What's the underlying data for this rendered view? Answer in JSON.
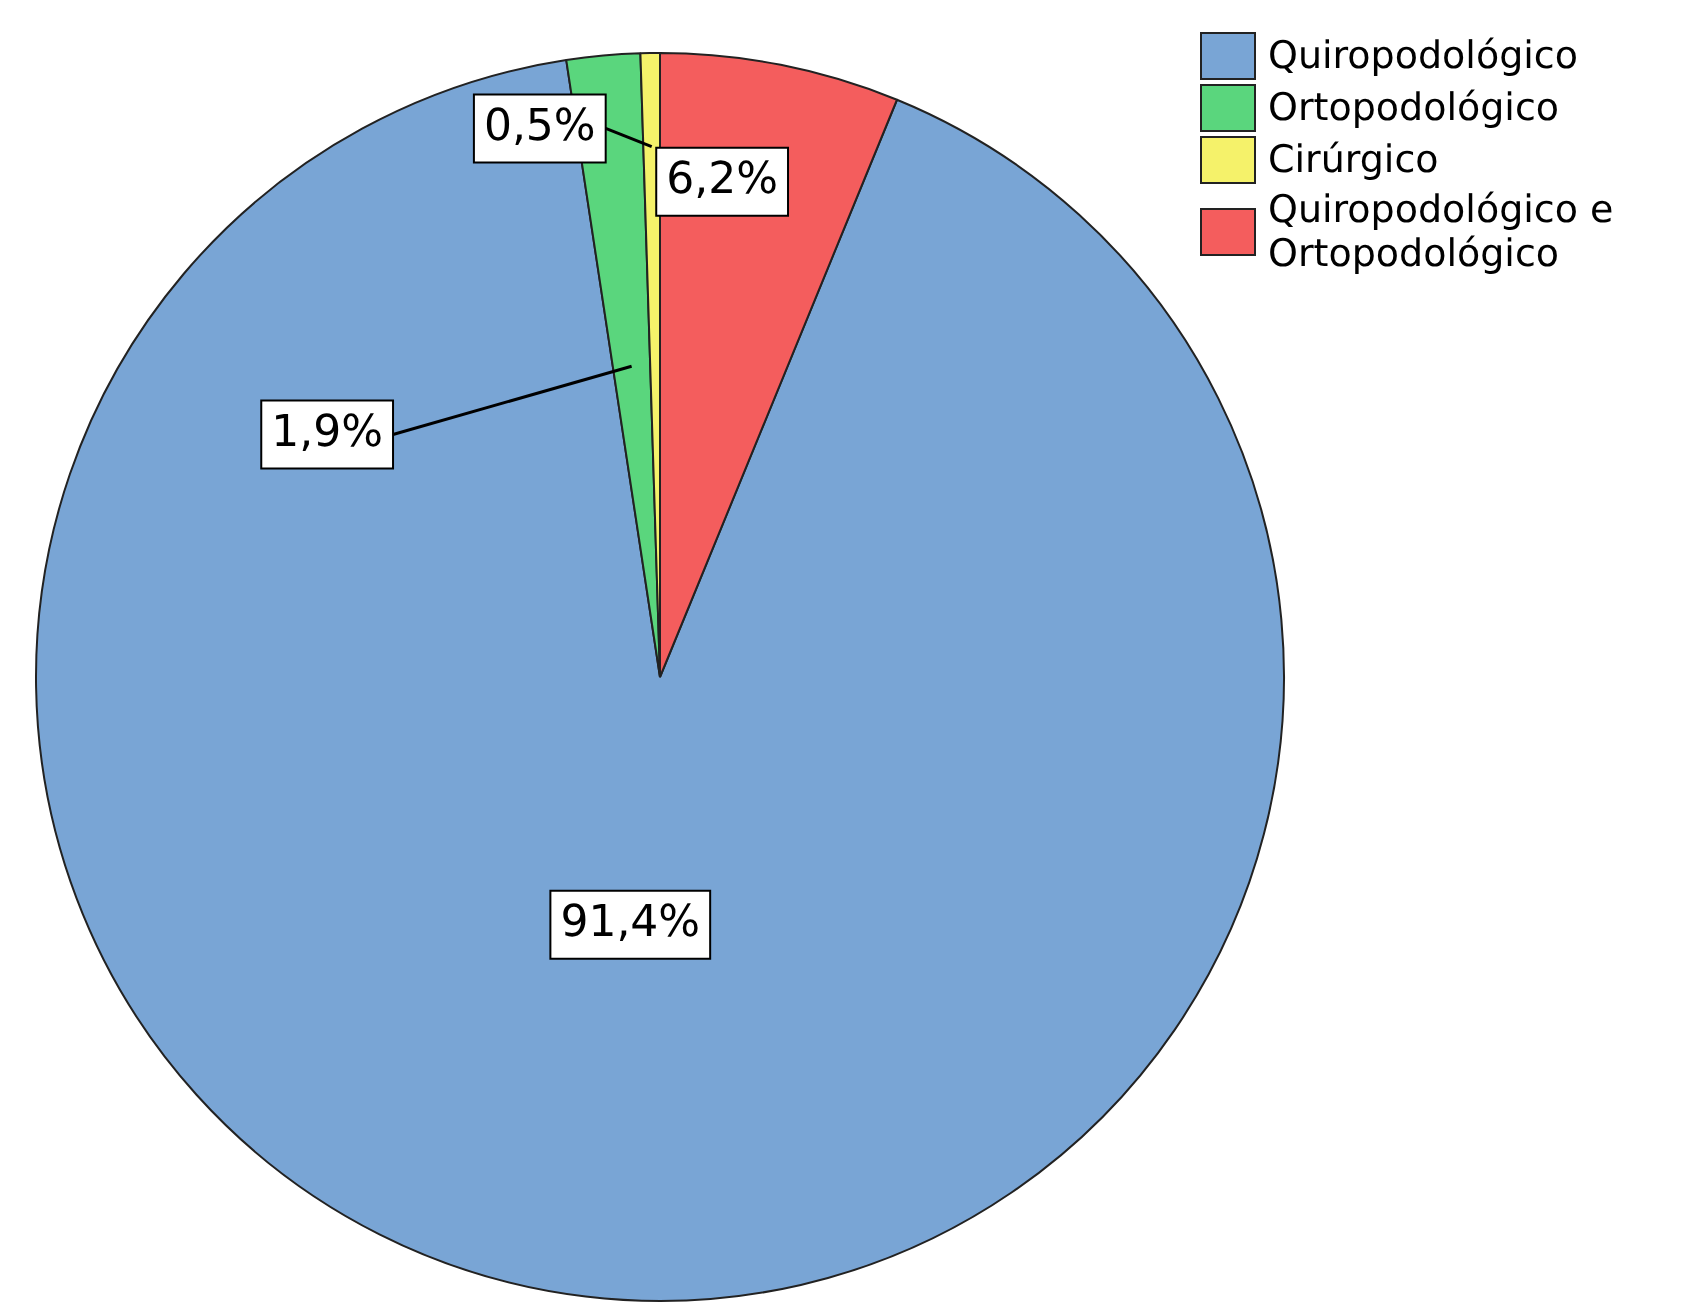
{
  "chart_data": {
    "type": "pie",
    "categories": [
      "Quiropodológico",
      "Ortopodológico",
      "Cirúrgico",
      "Quiropodológico e Ortopodológico"
    ],
    "values": [
      91.4,
      1.9,
      0.5,
      6.2
    ],
    "colors": [
      "#79a5d5",
      "#5ad67d",
      "#f5f26a",
      "#f45d5d"
    ],
    "value_labels": [
      "91,4%",
      "1,9%",
      "0,5%",
      "6,2%"
    ],
    "legend": "top right"
  }
}
